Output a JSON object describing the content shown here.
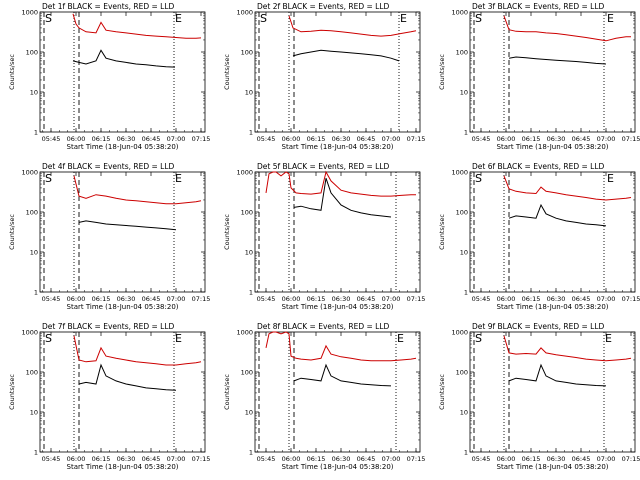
{
  "figure": {
    "xlabel": "Start Time (18-Jun-04 05:38:20)",
    "ylabel": "Counts/sec",
    "y_ticks": [
      {
        "value": 1,
        "label": "1"
      },
      {
        "value": 10,
        "label": "10"
      },
      {
        "value": 100,
        "label": "100"
      },
      {
        "value": 1000,
        "label": "1000"
      }
    ],
    "x_ticks": [
      {
        "value": 5.75,
        "label": "05:45"
      },
      {
        "value": 6.0,
        "label": "06:00"
      },
      {
        "value": 6.25,
        "label": "06:15"
      },
      {
        "value": 6.5,
        "label": "06:30"
      },
      {
        "value": 6.75,
        "label": "06:45"
      },
      {
        "value": 7.0,
        "label": "07:00"
      },
      {
        "value": 7.25,
        "label": "07:15"
      }
    ],
    "colors": {
      "events": "#000000",
      "lld": "#cc0000",
      "background": "#ffffff"
    },
    "markers": {
      "start": "S",
      "end": "E"
    }
  },
  "chart_data": [
    {
      "type": "line",
      "title": "Det 1f BLACK = Events, RED = LLD",
      "xlim": [
        5.64,
        7.29
      ],
      "ylim": [
        1,
        1000
      ],
      "yscale": "log",
      "x_unit": "hours UT",
      "series": [
        {
          "name": "Events",
          "color": "#000000",
          "x": [
            5.97,
            6.03,
            6.1,
            6.2,
            6.25,
            6.3,
            6.4,
            6.5,
            6.6,
            6.7,
            6.8,
            6.9,
            6.99
          ],
          "y": [
            60,
            55,
            50,
            60,
            110,
            70,
            60,
            55,
            50,
            48,
            45,
            43,
            42
          ]
        },
        {
          "name": "LLD",
          "color": "#cc0000",
          "x": [
            5.97,
            6.0,
            6.03,
            6.1,
            6.2,
            6.25,
            6.3,
            6.4,
            6.5,
            6.6,
            6.7,
            6.8,
            6.9,
            7.0,
            7.1,
            7.2,
            7.25
          ],
          "y": [
            900,
            500,
            400,
            320,
            300,
            550,
            350,
            320,
            300,
            280,
            260,
            250,
            240,
            230,
            220,
            220,
            225
          ]
        }
      ],
      "vlines": [
        {
          "x": 5.68,
          "style": "dashed"
        },
        {
          "x": 5.98,
          "style": "dotted"
        },
        {
          "x": 6.03,
          "style": "dashed"
        },
        {
          "x": 6.98,
          "style": "dotted"
        }
      ],
      "markers": [
        {
          "label": "S",
          "x": 5.68
        },
        {
          "label": "E",
          "x": 6.98
        }
      ]
    },
    {
      "type": "line",
      "title": "Det 2f BLACK = Events, RED = LLD",
      "xlim": [
        5.64,
        7.29
      ],
      "ylim": [
        1,
        1000
      ],
      "yscale": "log",
      "x_unit": "hours UT",
      "series": [
        {
          "name": "Events",
          "color": "#000000",
          "x": [
            6.02,
            6.1,
            6.2,
            6.3,
            6.4,
            6.5,
            6.6,
            6.7,
            6.8,
            6.9,
            7.0,
            7.08
          ],
          "y": [
            80,
            90,
            100,
            110,
            105,
            100,
            95,
            90,
            85,
            80,
            70,
            60
          ]
        },
        {
          "name": "LLD",
          "color": "#cc0000",
          "x": [
            5.98,
            6.02,
            6.1,
            6.2,
            6.3,
            6.4,
            6.5,
            6.6,
            6.7,
            6.8,
            6.9,
            7.0,
            7.1,
            7.2,
            7.25
          ],
          "y": [
            800,
            400,
            320,
            330,
            350,
            340,
            320,
            300,
            280,
            260,
            250,
            260,
            290,
            320,
            340
          ]
        }
      ],
      "vlines": [
        {
          "x": 5.68,
          "style": "dashed"
        },
        {
          "x": 5.98,
          "style": "dotted"
        },
        {
          "x": 6.03,
          "style": "dashed"
        },
        {
          "x": 7.08,
          "style": "dotted"
        }
      ],
      "markers": [
        {
          "label": "S",
          "x": 5.68
        },
        {
          "label": "E",
          "x": 7.08
        }
      ]
    },
    {
      "type": "line",
      "title": "Det 3f BLACK = Events, RED = LLD",
      "xlim": [
        5.64,
        7.29
      ],
      "ylim": [
        1,
        1000
      ],
      "yscale": "log",
      "x_unit": "hours UT",
      "series": [
        {
          "name": "Events",
          "color": "#000000",
          "x": [
            6.03,
            6.1,
            6.2,
            6.3,
            6.4,
            6.5,
            6.6,
            6.7,
            6.8,
            6.9,
            7.0
          ],
          "y": [
            70,
            75,
            72,
            68,
            65,
            62,
            60,
            58,
            55,
            52,
            50
          ]
        },
        {
          "name": "LLD",
          "color": "#cc0000",
          "x": [
            5.98,
            6.03,
            6.1,
            6.2,
            6.3,
            6.4,
            6.5,
            6.6,
            6.7,
            6.8,
            6.9,
            7.0,
            7.1,
            7.2,
            7.25
          ],
          "y": [
            800,
            360,
            330,
            320,
            320,
            300,
            290,
            270,
            250,
            230,
            210,
            190,
            220,
            240,
            240
          ]
        }
      ],
      "vlines": [
        {
          "x": 5.68,
          "style": "dashed"
        },
        {
          "x": 5.98,
          "style": "dotted"
        },
        {
          "x": 6.03,
          "style": "dashed"
        },
        {
          "x": 6.98,
          "style": "dotted"
        }
      ],
      "markers": [
        {
          "label": "S",
          "x": 5.68
        },
        {
          "label": "E",
          "x": 7.0
        }
      ]
    },
    {
      "type": "line",
      "title": "Det 4f BLACK = Events, RED = LLD",
      "xlim": [
        5.64,
        7.29
      ],
      "ylim": [
        1,
        1000
      ],
      "yscale": "log",
      "x_unit": "hours UT",
      "series": [
        {
          "name": "Events",
          "color": "#000000",
          "x": [
            6.03,
            6.1,
            6.2,
            6.3,
            6.4,
            6.5,
            6.6,
            6.7,
            6.8,
            6.9,
            7.0
          ],
          "y": [
            55,
            60,
            55,
            50,
            48,
            46,
            44,
            42,
            40,
            38,
            36
          ]
        },
        {
          "name": "LLD",
          "color": "#cc0000",
          "x": [
            5.98,
            6.03,
            6.1,
            6.2,
            6.3,
            6.4,
            6.5,
            6.6,
            6.7,
            6.8,
            6.9,
            7.0,
            7.1,
            7.2,
            7.25
          ],
          "y": [
            800,
            250,
            220,
            270,
            250,
            220,
            200,
            190,
            180,
            170,
            160,
            160,
            170,
            180,
            190
          ]
        }
      ],
      "vlines": [
        {
          "x": 5.68,
          "style": "dashed"
        },
        {
          "x": 5.98,
          "style": "dotted"
        },
        {
          "x": 6.03,
          "style": "dashed"
        },
        {
          "x": 6.98,
          "style": "dotted"
        }
      ],
      "markers": [
        {
          "label": "S",
          "x": 5.68
        },
        {
          "label": "E",
          "x": 6.98
        }
      ]
    },
    {
      "type": "line",
      "title": "Det 5f BLACK = Events, RED = LLD",
      "xlim": [
        5.64,
        7.29
      ],
      "ylim": [
        1,
        1000
      ],
      "yscale": "log",
      "x_unit": "hours UT",
      "series": [
        {
          "name": "Events",
          "color": "#000000",
          "x": [
            6.03,
            6.1,
            6.2,
            6.3,
            6.35,
            6.4,
            6.5,
            6.6,
            6.7,
            6.8,
            6.9,
            7.0
          ],
          "y": [
            130,
            140,
            120,
            110,
            700,
            300,
            150,
            110,
            95,
            85,
            80,
            75
          ]
        },
        {
          "name": "LLD",
          "color": "#cc0000",
          "x": [
            5.75,
            5.78,
            5.82,
            5.85,
            5.9,
            5.95,
            5.98,
            6.0,
            6.05,
            6.1,
            6.2,
            6.3,
            6.35,
            6.4,
            6.5,
            6.6,
            6.7,
            6.8,
            6.9,
            7.0,
            7.1,
            7.2,
            7.25
          ],
          "y": [
            300,
            900,
            1000,
            1000,
            800,
            1000,
            900,
            400,
            300,
            290,
            280,
            300,
            1000,
            600,
            350,
            300,
            280,
            260,
            250,
            250,
            260,
            270,
            270
          ]
        }
      ],
      "vlines": [
        {
          "x": 5.68,
          "style": "dashed"
        },
        {
          "x": 5.98,
          "style": "dotted"
        },
        {
          "x": 6.03,
          "style": "dashed"
        },
        {
          "x": 7.05,
          "style": "dotted"
        }
      ],
      "markers": []
    },
    {
      "type": "line",
      "title": "Det 6f BLACK = Events, RED = LLD",
      "xlim": [
        5.64,
        7.29
      ],
      "ylim": [
        1,
        1000
      ],
      "yscale": "log",
      "x_unit": "hours UT",
      "series": [
        {
          "name": "Events",
          "color": "#000000",
          "x": [
            6.03,
            6.1,
            6.2,
            6.3,
            6.35,
            6.4,
            6.5,
            6.6,
            6.7,
            6.8,
            6.9,
            7.0
          ],
          "y": [
            70,
            80,
            75,
            70,
            150,
            90,
            70,
            60,
            55,
            50,
            48,
            45
          ]
        },
        {
          "name": "LLD",
          "color": "#cc0000",
          "x": [
            5.98,
            6.03,
            6.1,
            6.2,
            6.3,
            6.35,
            6.4,
            6.5,
            6.6,
            6.7,
            6.8,
            6.9,
            7.0,
            7.1,
            7.2,
            7.25
          ],
          "y": [
            800,
            380,
            330,
            300,
            290,
            420,
            330,
            300,
            270,
            250,
            230,
            210,
            200,
            210,
            220,
            230
          ]
        }
      ],
      "vlines": [
        {
          "x": 5.68,
          "style": "dashed"
        },
        {
          "x": 5.98,
          "style": "dotted"
        },
        {
          "x": 6.03,
          "style": "dashed"
        },
        {
          "x": 6.98,
          "style": "dotted"
        }
      ],
      "markers": [
        {
          "label": "S",
          "x": 5.68
        },
        {
          "label": "E",
          "x": 7.0
        }
      ]
    },
    {
      "type": "line",
      "title": "Det 7f BLACK = Events, RED = LLD",
      "xlim": [
        5.64,
        7.29
      ],
      "ylim": [
        1,
        1000
      ],
      "yscale": "log",
      "x_unit": "hours UT",
      "series": [
        {
          "name": "Events",
          "color": "#000000",
          "x": [
            6.03,
            6.1,
            6.2,
            6.25,
            6.3,
            6.4,
            6.5,
            6.6,
            6.7,
            6.8,
            6.9,
            7.0
          ],
          "y": [
            50,
            55,
            50,
            150,
            80,
            60,
            50,
            45,
            40,
            38,
            36,
            35
          ]
        },
        {
          "name": "LLD",
          "color": "#cc0000",
          "x": [
            5.98,
            6.03,
            6.1,
            6.2,
            6.25,
            6.3,
            6.4,
            6.5,
            6.6,
            6.7,
            6.8,
            6.9,
            7.0,
            7.1,
            7.2,
            7.25
          ],
          "y": [
            800,
            200,
            180,
            190,
            400,
            250,
            220,
            200,
            180,
            170,
            160,
            150,
            150,
            160,
            170,
            180
          ]
        }
      ],
      "vlines": [
        {
          "x": 5.68,
          "style": "dashed"
        },
        {
          "x": 5.98,
          "style": "dotted"
        },
        {
          "x": 6.03,
          "style": "dashed"
        },
        {
          "x": 6.98,
          "style": "dotted"
        }
      ],
      "markers": [
        {
          "label": "S",
          "x": 5.68
        },
        {
          "label": "E",
          "x": 6.98
        }
      ]
    },
    {
      "type": "line",
      "title": "Det 8f BLACK = Events, RED = LLD",
      "xlim": [
        5.64,
        7.29
      ],
      "ylim": [
        1,
        1000
      ],
      "yscale": "log",
      "x_unit": "hours UT",
      "series": [
        {
          "name": "Events",
          "color": "#000000",
          "x": [
            6.03,
            6.1,
            6.2,
            6.3,
            6.35,
            6.4,
            6.5,
            6.6,
            6.7,
            6.8,
            6.9,
            7.0
          ],
          "y": [
            60,
            70,
            65,
            60,
            150,
            80,
            60,
            55,
            50,
            48,
            46,
            45
          ]
        },
        {
          "name": "LLD",
          "color": "#cc0000",
          "x": [
            5.75,
            5.78,
            5.82,
            5.85,
            5.9,
            5.95,
            5.98,
            6.0,
            6.05,
            6.1,
            6.2,
            6.3,
            6.35,
            6.4,
            6.5,
            6.6,
            6.7,
            6.8,
            6.9,
            7.0,
            7.1,
            7.2,
            7.25
          ],
          "y": [
            400,
            900,
            1000,
            1000,
            900,
            1000,
            900,
            250,
            220,
            210,
            200,
            220,
            450,
            280,
            240,
            220,
            200,
            190,
            190,
            190,
            200,
            210,
            220
          ]
        }
      ],
      "vlines": [
        {
          "x": 5.68,
          "style": "dashed"
        },
        {
          "x": 5.98,
          "style": "dotted"
        },
        {
          "x": 6.03,
          "style": "dashed"
        },
        {
          "x": 7.05,
          "style": "dotted"
        }
      ],
      "markers": [
        {
          "label": "E",
          "x": 7.05
        }
      ]
    },
    {
      "type": "line",
      "title": "Det 9f BLACK = Events, RED = LLD",
      "xlim": [
        5.64,
        7.29
      ],
      "ylim": [
        1,
        1000
      ],
      "yscale": "log",
      "x_unit": "hours UT",
      "series": [
        {
          "name": "Events",
          "color": "#000000",
          "x": [
            6.03,
            6.1,
            6.2,
            6.3,
            6.35,
            6.4,
            6.5,
            6.6,
            6.7,
            6.8,
            6.9,
            7.0
          ],
          "y": [
            60,
            70,
            65,
            60,
            150,
            80,
            60,
            55,
            50,
            48,
            46,
            45
          ]
        },
        {
          "name": "LLD",
          "color": "#cc0000",
          "x": [
            5.98,
            6.03,
            6.1,
            6.2,
            6.3,
            6.35,
            6.4,
            6.5,
            6.6,
            6.7,
            6.8,
            6.9,
            7.0,
            7.1,
            7.2,
            7.25
          ],
          "y": [
            800,
            300,
            280,
            290,
            280,
            400,
            300,
            270,
            250,
            230,
            210,
            200,
            190,
            200,
            210,
            220
          ]
        }
      ],
      "vlines": [
        {
          "x": 5.68,
          "style": "dashed"
        },
        {
          "x": 5.98,
          "style": "dotted"
        },
        {
          "x": 6.03,
          "style": "dashed"
        },
        {
          "x": 6.98,
          "style": "dotted"
        }
      ],
      "markers": [
        {
          "label": "S",
          "x": 5.68
        },
        {
          "label": "E",
          "x": 6.98
        }
      ]
    }
  ]
}
